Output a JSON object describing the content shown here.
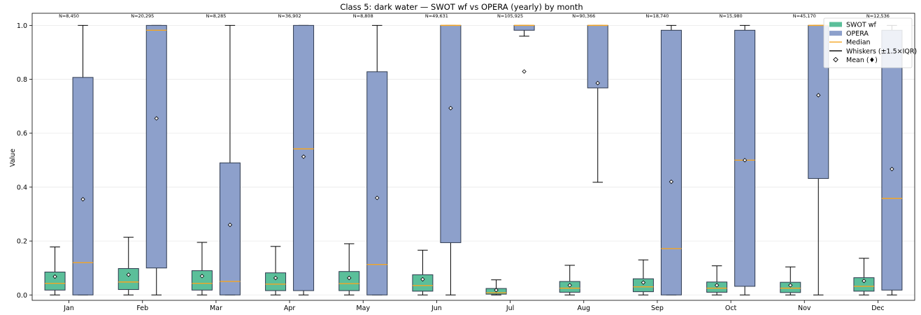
{
  "chart_data": {
    "type": "box",
    "title": "Class 5: dark water — SWOT wf vs OPERA (yearly) by month",
    "xlabel": "",
    "ylabel": "Value",
    "ylim": [
      -0.02,
      1.045
    ],
    "yticks": [
      "0.0",
      "0.2",
      "0.4",
      "0.6",
      "0.8",
      "1.0"
    ],
    "categories": [
      "Jan",
      "Feb",
      "Mar",
      "Apr",
      "May",
      "Jun",
      "Jul",
      "Aug",
      "Sep",
      "Oct",
      "Nov",
      "Dec"
    ],
    "counts": [
      "N=8,450",
      "N=20,295",
      "N=8,285",
      "N=36,902",
      "N=8,808",
      "N=49,631",
      "N=105,925",
      "N=90,366",
      "N=18,740",
      "N=15,980",
      "N=45,170",
      "N=12,536"
    ],
    "grid": "horizontal",
    "legend_position": "top-right",
    "series": [
      {
        "name": "SWOT wf",
        "color": "#5bbf9a",
        "boxes": [
          {
            "wlo": 0.0,
            "q1": 0.018,
            "median": 0.043,
            "q3": 0.085,
            "whi": 0.178,
            "mean": 0.068
          },
          {
            "wlo": 0.0,
            "q1": 0.02,
            "median": 0.048,
            "q3": 0.098,
            "whi": 0.214,
            "mean": 0.075
          },
          {
            "wlo": 0.0,
            "q1": 0.018,
            "median": 0.043,
            "q3": 0.09,
            "whi": 0.195,
            "mean": 0.07
          },
          {
            "wlo": 0.0,
            "q1": 0.016,
            "median": 0.04,
            "q3": 0.082,
            "whi": 0.18,
            "mean": 0.063
          },
          {
            "wlo": 0.0,
            "q1": 0.016,
            "median": 0.042,
            "q3": 0.087,
            "whi": 0.19,
            "mean": 0.063
          },
          {
            "wlo": 0.0,
            "q1": 0.014,
            "median": 0.035,
            "q3": 0.075,
            "whi": 0.166,
            "mean": 0.058
          },
          {
            "wlo": 0.0,
            "q1": 0.003,
            "median": 0.008,
            "q3": 0.024,
            "whi": 0.056,
            "mean": 0.018
          },
          {
            "wlo": 0.0,
            "q1": 0.01,
            "median": 0.025,
            "q3": 0.05,
            "whi": 0.11,
            "mean": 0.036
          },
          {
            "wlo": 0.0,
            "q1": 0.012,
            "median": 0.03,
            "q3": 0.06,
            "whi": 0.13,
            "mean": 0.046
          },
          {
            "wlo": 0.0,
            "q1": 0.01,
            "median": 0.025,
            "q3": 0.048,
            "whi": 0.108,
            "mean": 0.036
          },
          {
            "wlo": 0.0,
            "q1": 0.009,
            "median": 0.025,
            "q3": 0.047,
            "whi": 0.104,
            "mean": 0.036
          },
          {
            "wlo": 0.0,
            "q1": 0.014,
            "median": 0.032,
            "q3": 0.064,
            "whi": 0.136,
            "mean": 0.052
          }
        ]
      },
      {
        "name": "OPERA",
        "color": "#8da0cb",
        "boxes": [
          {
            "wlo": 0.0,
            "q1": 0.0,
            "median": 0.12,
            "q3": 0.807,
            "whi": 1.0,
            "mean": 0.355
          },
          {
            "wlo": 0.0,
            "q1": 0.1,
            "median": 0.982,
            "q3": 1.0,
            "whi": 1.0,
            "mean": 0.655
          },
          {
            "wlo": 0.0,
            "q1": 0.0,
            "median": 0.05,
            "q3": 0.49,
            "whi": 1.0,
            "mean": 0.26
          },
          {
            "wlo": 0.0,
            "q1": 0.016,
            "median": 0.542,
            "q3": 1.0,
            "whi": 1.0,
            "mean": 0.513
          },
          {
            "wlo": 0.0,
            "q1": 0.0,
            "median": 0.113,
            "q3": 0.828,
            "whi": 1.0,
            "mean": 0.36
          },
          {
            "wlo": 0.0,
            "q1": 0.194,
            "median": 1.0,
            "q3": 1.0,
            "whi": 1.0,
            "mean": 0.693
          },
          {
            "wlo": 0.96,
            "q1": 0.982,
            "median": 1.0,
            "q3": 1.0,
            "whi": 1.0,
            "mean": 0.829
          },
          {
            "wlo": 0.418,
            "q1": 0.768,
            "median": 1.0,
            "q3": 1.0,
            "whi": 1.0,
            "mean": 0.786
          },
          {
            "wlo": 0.0,
            "q1": 0.0,
            "median": 0.172,
            "q3": 0.982,
            "whi": 1.0,
            "mean": 0.42
          },
          {
            "wlo": 0.0,
            "q1": 0.032,
            "median": 0.5,
            "q3": 0.982,
            "whi": 1.0,
            "mean": 0.5
          },
          {
            "wlo": 0.0,
            "q1": 0.432,
            "median": 1.0,
            "q3": 1.0,
            "whi": 1.0,
            "mean": 0.741
          },
          {
            "wlo": 0.0,
            "q1": 0.018,
            "median": 0.358,
            "q3": 0.982,
            "whi": 1.0,
            "mean": 0.467
          }
        ]
      }
    ],
    "legend": [
      {
        "label": "SWOT wf",
        "kind": "patch",
        "color": "#5bbf9a"
      },
      {
        "label": "OPERA",
        "kind": "patch",
        "color": "#8da0cb"
      },
      {
        "label": "Median",
        "kind": "line",
        "color": "#f5a623"
      },
      {
        "label": "Whiskers (±1.5×IQR)",
        "kind": "line",
        "color": "#000000"
      },
      {
        "label": "Mean (♦)",
        "kind": "diamond",
        "color": "#000000"
      }
    ],
    "median_color": "#f5a623"
  }
}
